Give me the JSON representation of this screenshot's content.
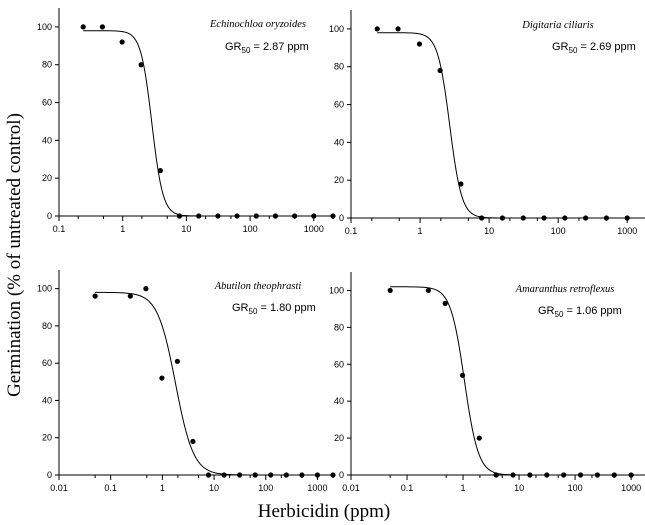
{
  "figure": {
    "ylabel": "Germination (% of untreated control)",
    "xlabel": "Herbicidin (ppm)"
  },
  "chart_data": [
    {
      "type": "scatter",
      "title": "Echinochloa oryzoides",
      "annotation": {
        "prefix": "GR",
        "sub": "50",
        "suffix": " = 2.87 ppm"
      },
      "xscale": "log",
      "xlim": [
        0.1,
        2000
      ],
      "ylim": [
        0,
        110
      ],
      "xticks": [
        0.1,
        0.2,
        0.5,
        1,
        2,
        5,
        10,
        20,
        50,
        100,
        200,
        500,
        1000,
        2000
      ],
      "yticks": [
        0,
        20,
        40,
        60,
        80,
        100
      ],
      "series": [
        {
          "x": [
            0.24,
            0.48,
            0.98,
            1.95,
            3.9,
            7.8,
            15.6,
            31.25,
            62.5,
            125,
            250,
            500,
            1000,
            2000
          ],
          "y": [
            100,
            100,
            92,
            80,
            24,
            0,
            0,
            0,
            0,
            0,
            0,
            0,
            0,
            0
          ]
        }
      ],
      "fit": {
        "top": 98,
        "bottom": 0,
        "ec50": 2.87,
        "slope": 5.0
      }
    },
    {
      "type": "scatter",
      "title": "Digitaria ciliaris",
      "annotation": {
        "prefix": "GR",
        "sub": "50",
        "suffix": " = 2.69 ppm"
      },
      "xscale": "log",
      "xlim": [
        0.1,
        2000
      ],
      "ylim": [
        0,
        110
      ],
      "xticks": [
        0.1,
        0.2,
        0.5,
        1,
        2,
        5,
        10,
        20,
        50,
        100,
        200,
        500,
        1000,
        2000
      ],
      "yticks": [
        0,
        20,
        40,
        60,
        80,
        100
      ],
      "series": [
        {
          "x": [
            0.24,
            0.48,
            0.98,
            1.95,
            3.9,
            7.8,
            15.6,
            31.25,
            62.5,
            125,
            250,
            500,
            1000,
            2000
          ],
          "y": [
            100,
            100,
            92,
            78,
            18,
            0,
            0,
            0,
            0,
            0,
            0,
            0,
            0,
            0
          ]
        }
      ],
      "fit": {
        "top": 98,
        "bottom": 0,
        "ec50": 2.69,
        "slope": 5.0
      }
    },
    {
      "type": "scatter",
      "title": "Abutilon theophrasti",
      "annotation": {
        "prefix": "GR",
        "sub": "50",
        "suffix": " = 1.80 ppm"
      },
      "xscale": "log",
      "xlim": [
        0.01,
        2000
      ],
      "ylim": [
        0,
        110
      ],
      "xticks": [
        0.01,
        0.05,
        0.1,
        0.5,
        1,
        2,
        5,
        10,
        20,
        50,
        100,
        200,
        500,
        1000,
        2000
      ],
      "yticks": [
        0,
        20,
        40,
        60,
        80,
        100
      ],
      "series": [
        {
          "x": [
            0.05,
            0.24,
            0.48,
            0.98,
            1.95,
            3.9,
            7.8,
            15.6,
            31.25,
            62.5,
            125,
            250,
            500,
            1000,
            2000
          ],
          "y": [
            96,
            96,
            100,
            52,
            61,
            18,
            0,
            0,
            0,
            0,
            0,
            0,
            0,
            0,
            0
          ]
        }
      ],
      "fit": {
        "top": 98,
        "bottom": 0,
        "ec50": 1.8,
        "slope": 2.5
      }
    },
    {
      "type": "scatter",
      "title": "Amaranthus retroflexus",
      "annotation": {
        "prefix": "GR",
        "sub": "50",
        "suffix": " = 1.06 ppm"
      },
      "xscale": "log",
      "xlim": [
        0.01,
        2000
      ],
      "ylim": [
        0,
        110
      ],
      "xticks": [
        0.01,
        0.05,
        0.1,
        0.5,
        1,
        2,
        5,
        10,
        20,
        50,
        100,
        200,
        500,
        1000,
        2000
      ],
      "yticks": [
        0,
        20,
        40,
        60,
        80,
        100
      ],
      "series": [
        {
          "x": [
            0.05,
            0.24,
            0.48,
            0.98,
            1.95,
            3.9,
            7.8,
            15.6,
            31.25,
            62.5,
            125,
            250,
            500,
            1000,
            2000
          ],
          "y": [
            100,
            100,
            93,
            54,
            20,
            0,
            0,
            0,
            0,
            0,
            0,
            0,
            0,
            0,
            0
          ]
        }
      ],
      "fit": {
        "top": 102,
        "bottom": 0,
        "ec50": 1.06,
        "slope": 3.5
      }
    }
  ]
}
